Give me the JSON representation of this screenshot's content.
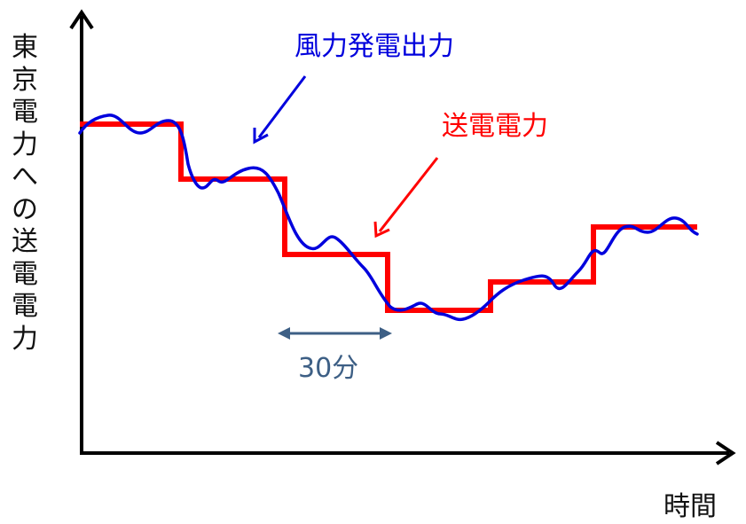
{
  "axes": {
    "y_label": "東京電力への送電電力",
    "x_label": "時間"
  },
  "annotations": {
    "wind_output": "風力発電出力",
    "transmitted_power": "送電電力",
    "interval": "30分"
  },
  "colors": {
    "wind_output": "#0000dd",
    "transmitted_power": "#ff0000",
    "interval": "#3d5f85",
    "axes": "#000000"
  },
  "chart_data": {
    "type": "line",
    "series": [
      {
        "name": "送電電力",
        "step_levels": [
          6,
          5,
          4,
          3,
          3.5,
          5
        ]
      },
      {
        "name": "風力発電出力"
      }
    ],
    "step_interval": "30分"
  }
}
